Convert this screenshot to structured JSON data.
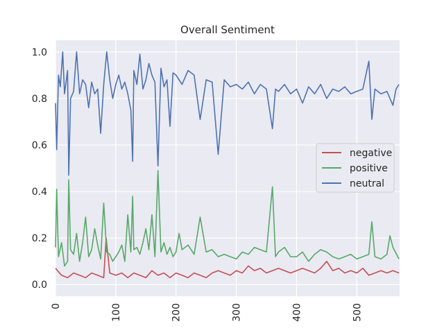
{
  "chart_data": {
    "type": "line",
    "title": "Overall Sentiment",
    "xlabel": "",
    "ylabel": "",
    "xlim": [
      0,
      571
    ],
    "ylim": [
      -0.05,
      1.05
    ],
    "x_ticks": [
      0,
      100,
      200,
      300,
      400,
      500
    ],
    "y_ticks": [
      0.0,
      0.2,
      0.4,
      0.6,
      0.8,
      1.0
    ],
    "y_tick_labels": [
      "0.0",
      "0.2",
      "0.4",
      "0.6",
      "0.8",
      "1.0"
    ],
    "x_tick_rotation": 90,
    "grid": true,
    "legend_position": "center-right",
    "series": [
      {
        "name": "negative",
        "color": "#c44e52",
        "x": [
          0,
          10,
          20,
          30,
          40,
          50,
          60,
          70,
          80,
          84,
          90,
          100,
          110,
          120,
          130,
          140,
          150,
          160,
          170,
          180,
          190,
          200,
          210,
          220,
          230,
          240,
          250,
          260,
          270,
          280,
          290,
          300,
          310,
          320,
          330,
          340,
          350,
          360,
          370,
          380,
          390,
          400,
          410,
          420,
          430,
          440,
          450,
          460,
          470,
          480,
          490,
          500,
          510,
          520,
          530,
          540,
          550,
          560,
          570
        ],
        "y": [
          0.07,
          0.04,
          0.03,
          0.05,
          0.04,
          0.03,
          0.05,
          0.04,
          0.03,
          0.2,
          0.05,
          0.04,
          0.05,
          0.03,
          0.05,
          0.04,
          0.03,
          0.06,
          0.04,
          0.05,
          0.03,
          0.05,
          0.04,
          0.03,
          0.05,
          0.04,
          0.03,
          0.05,
          0.06,
          0.05,
          0.04,
          0.06,
          0.05,
          0.08,
          0.06,
          0.07,
          0.05,
          0.06,
          0.07,
          0.06,
          0.05,
          0.06,
          0.07,
          0.06,
          0.05,
          0.07,
          0.1,
          0.06,
          0.07,
          0.05,
          0.06,
          0.05,
          0.07,
          0.04,
          0.05,
          0.06,
          0.05,
          0.06,
          0.05
        ]
      },
      {
        "name": "positive",
        "color": "#55a868",
        "x": [
          0,
          2,
          5,
          10,
          15,
          20,
          22,
          25,
          30,
          35,
          40,
          45,
          50,
          55,
          60,
          65,
          70,
          75,
          80,
          85,
          90,
          95,
          100,
          105,
          110,
          115,
          120,
          125,
          128,
          130,
          135,
          140,
          145,
          150,
          155,
          160,
          165,
          170,
          175,
          180,
          185,
          190,
          195,
          200,
          205,
          210,
          220,
          230,
          240,
          250,
          260,
          270,
          280,
          290,
          300,
          310,
          320,
          330,
          340,
          350,
          360,
          365,
          370,
          380,
          390,
          400,
          410,
          420,
          430,
          440,
          450,
          460,
          470,
          480,
          490,
          500,
          510,
          520,
          525,
          530,
          540,
          550,
          555,
          560,
          570
        ],
        "y": [
          0.16,
          0.41,
          0.12,
          0.18,
          0.08,
          0.1,
          0.45,
          0.15,
          0.13,
          0.22,
          0.1,
          0.18,
          0.29,
          0.12,
          0.15,
          0.24,
          0.17,
          0.11,
          0.35,
          0.14,
          0.13,
          0.1,
          0.12,
          0.14,
          0.17,
          0.1,
          0.3,
          0.14,
          0.38,
          0.15,
          0.16,
          0.13,
          0.18,
          0.24,
          0.15,
          0.3,
          0.12,
          0.49,
          0.14,
          0.18,
          0.13,
          0.16,
          0.12,
          0.14,
          0.22,
          0.15,
          0.17,
          0.13,
          0.29,
          0.14,
          0.15,
          0.12,
          0.13,
          0.12,
          0.11,
          0.14,
          0.13,
          0.16,
          0.15,
          0.14,
          0.42,
          0.12,
          0.14,
          0.16,
          0.12,
          0.12,
          0.14,
          0.1,
          0.13,
          0.15,
          0.14,
          0.12,
          0.11,
          0.12,
          0.13,
          0.11,
          0.12,
          0.13,
          0.27,
          0.12,
          0.11,
          0.13,
          0.21,
          0.16,
          0.11
        ]
      },
      {
        "name": "neutral",
        "color": "#4c72b0",
        "x": [
          0,
          2,
          5,
          8,
          12,
          15,
          20,
          22,
          25,
          30,
          35,
          40,
          45,
          50,
          55,
          60,
          65,
          70,
          75,
          80,
          85,
          90,
          95,
          100,
          105,
          110,
          115,
          120,
          125,
          128,
          130,
          135,
          140,
          145,
          150,
          155,
          160,
          165,
          170,
          175,
          180,
          185,
          190,
          195,
          200,
          205,
          210,
          220,
          230,
          240,
          250,
          260,
          270,
          280,
          290,
          300,
          310,
          320,
          330,
          340,
          350,
          360,
          365,
          370,
          380,
          390,
          400,
          410,
          420,
          430,
          440,
          450,
          460,
          470,
          480,
          490,
          500,
          510,
          520,
          525,
          530,
          540,
          550,
          560,
          565,
          570
        ],
        "y": [
          0.78,
          0.58,
          0.9,
          0.85,
          1.0,
          0.82,
          0.92,
          0.47,
          0.8,
          0.83,
          1.0,
          0.82,
          0.88,
          0.86,
          0.76,
          0.87,
          0.82,
          0.84,
          0.65,
          0.86,
          1.0,
          0.88,
          0.8,
          0.86,
          0.9,
          0.84,
          0.87,
          0.82,
          0.75,
          0.53,
          0.92,
          0.86,
          0.99,
          0.84,
          0.88,
          0.95,
          0.9,
          0.87,
          0.51,
          0.93,
          0.85,
          0.88,
          0.68,
          0.91,
          0.9,
          0.88,
          0.86,
          0.92,
          0.9,
          0.71,
          0.88,
          0.87,
          0.56,
          0.88,
          0.85,
          0.86,
          0.84,
          0.87,
          0.82,
          0.86,
          0.84,
          0.67,
          0.84,
          0.83,
          0.86,
          0.82,
          0.84,
          0.78,
          0.85,
          0.82,
          0.86,
          0.8,
          0.84,
          0.83,
          0.85,
          0.82,
          0.83,
          0.84,
          0.96,
          0.71,
          0.84,
          0.82,
          0.83,
          0.77,
          0.84,
          0.86
        ]
      }
    ]
  },
  "styles": {
    "axes_bg": "#eaeaf2",
    "grid": "#ffffff"
  }
}
